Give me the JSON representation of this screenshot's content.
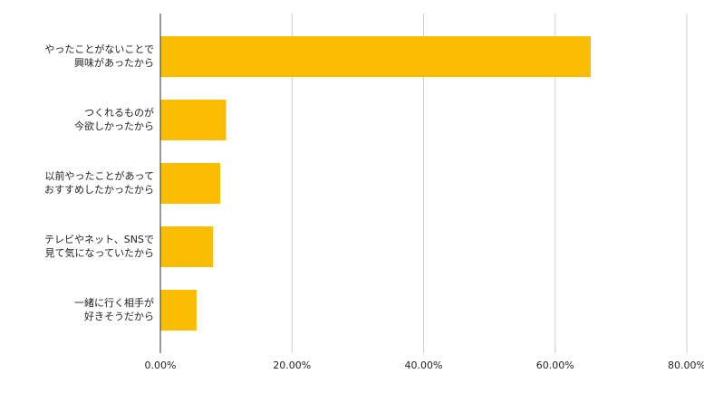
{
  "chart_data": {
    "type": "barh",
    "categories": [
      "やったことがないことで\n興味があったから",
      "つくれるものが\n今欲しかったから",
      "以前やったことがあって\nおすすめしたかったから",
      "テレビやネット、SNSで\n見て気になっていたから",
      "一緒に行く相手が\n好きそうだから"
    ],
    "values": [
      65.4,
      10.0,
      9.1,
      8.0,
      5.5
    ],
    "color": "#fbbc04",
    "xlim": [
      0,
      80
    ],
    "xticks": [
      {
        "value": 0,
        "label": "0.00%"
      },
      {
        "value": 20,
        "label": "20.00%"
      },
      {
        "value": 40,
        "label": "40.00%"
      },
      {
        "value": 60,
        "label": "60.00%"
      },
      {
        "value": 80,
        "label": "80.00%"
      }
    ],
    "grid": true
  }
}
